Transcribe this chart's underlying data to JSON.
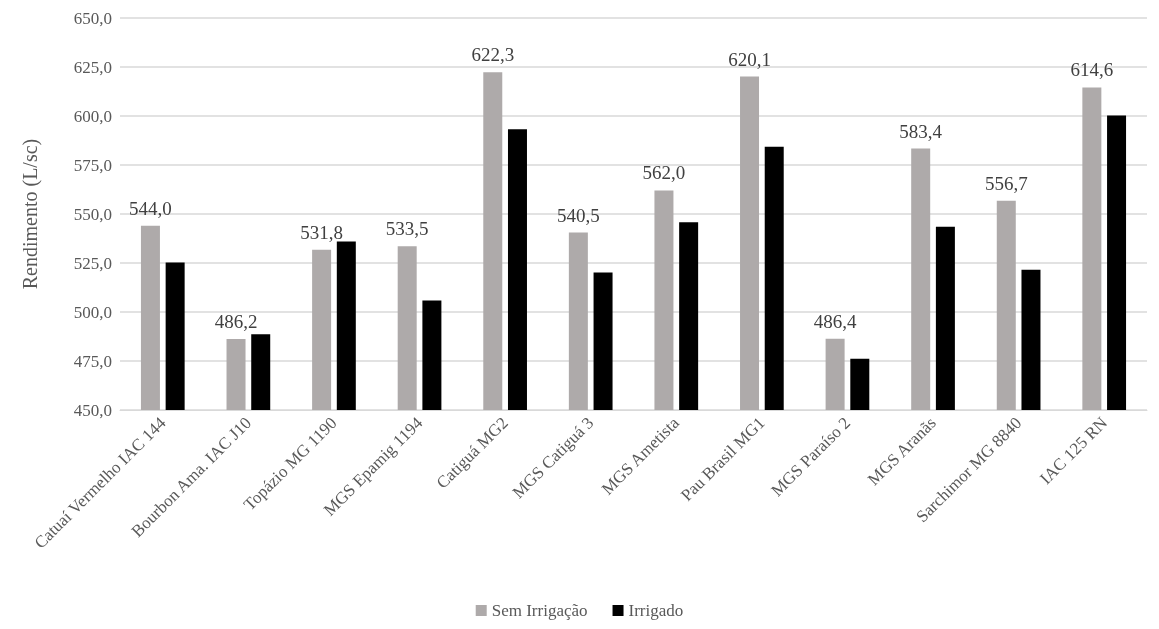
{
  "chart_data": {
    "type": "bar",
    "ylabel": "Rendimento (L/sc)",
    "categories": [
      "Catuaí Vermelho IAC 144",
      "Bourbon Ama. IAC J10",
      "Topázio MG 1190",
      "MGS Epamig 1194",
      "Catiguá MG2",
      "MGS Catiguá 3",
      "MGS Ametista",
      "Pau Brasil MG1",
      "MGS Paraíso 2",
      "MGS Aranãs",
      "Sarchimor MG 8840",
      "IAC 125 RN"
    ],
    "series": [
      {
        "name": "Sem Irrigação",
        "color": "#aeaaaa",
        "values": [
          544.0,
          486.2,
          531.8,
          533.5,
          622.3,
          540.5,
          562.0,
          620.1,
          486.4,
          583.4,
          556.7,
          614.6
        ],
        "value_labels": [
          "544,0",
          "486,2",
          "531,8",
          "533,5",
          "622,3",
          "540,5",
          "562,0",
          "620,1",
          "486,4",
          "583,4",
          "556,7",
          "614,6"
        ]
      },
      {
        "name": "Irrigado",
        "color": "#000000",
        "values": [
          525.3,
          488.6,
          536.0,
          505.9,
          593.2,
          520.2,
          545.8,
          584.3,
          476.2,
          543.5,
          521.5,
          600.3
        ]
      }
    ],
    "ylim": [
      450,
      650
    ],
    "yticks": [
      {
        "value": 450,
        "label": "450,0"
      },
      {
        "value": 475,
        "label": "475,0"
      },
      {
        "value": 500,
        "label": "500,0"
      },
      {
        "value": 525,
        "label": "525,0"
      },
      {
        "value": 550,
        "label": "550,0"
      },
      {
        "value": 575,
        "label": "575,0"
      },
      {
        "value": 600,
        "label": "600,0"
      },
      {
        "value": 625,
        "label": "625,0"
      },
      {
        "value": 650,
        "label": "650,0"
      }
    ],
    "grid": "y",
    "legend": "bottom"
  }
}
